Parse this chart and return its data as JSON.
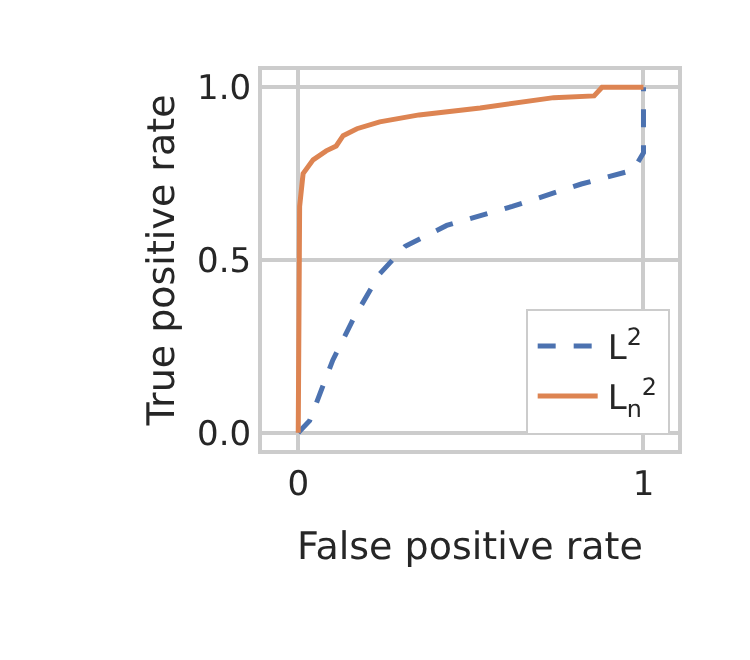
{
  "chart_data": {
    "type": "line",
    "xlabel": "False positive rate",
    "ylabel": "True positive rate",
    "xlim": [
      -0.105,
      1.1
    ],
    "ylim": [
      -0.05,
      1.05
    ],
    "xticks": [
      0,
      1
    ],
    "yticks": [
      {
        "value": 0,
        "label": "0.0"
      },
      0.5,
      {
        "value": 1,
        "label": "1.0"
      }
    ],
    "grid": true,
    "legend": "bottom right",
    "marker": "none",
    "series": [
      {
        "name": "L$^{2}$",
        "color": "#4c72b0",
        "line_style": "dashed",
        "x": [
          0,
          0.033,
          0.1,
          0.16,
          0.236,
          0.31,
          0.43,
          0.62,
          0.82,
          0.97,
          1.0,
          1.0
        ],
        "values": [
          0,
          0.035,
          0.21,
          0.33,
          0.46,
          0.54,
          0.6,
          0.655,
          0.72,
          0.76,
          0.81,
          1.0
        ]
      },
      {
        "name": "L$_{n}$$^{2}$",
        "color": "#dd8452",
        "line_style": "solid",
        "x": [
          0,
          0.004,
          0.014,
          0.043,
          0.081,
          0.11,
          0.13,
          0.17,
          0.236,
          0.35,
          0.527,
          0.74,
          0.857,
          0.88,
          1.0
        ],
        "values": [
          0,
          0.655,
          0.75,
          0.79,
          0.816,
          0.83,
          0.86,
          0.88,
          0.9,
          0.92,
          0.94,
          0.97,
          0.975,
          1.0,
          1.0
        ]
      }
    ]
  }
}
